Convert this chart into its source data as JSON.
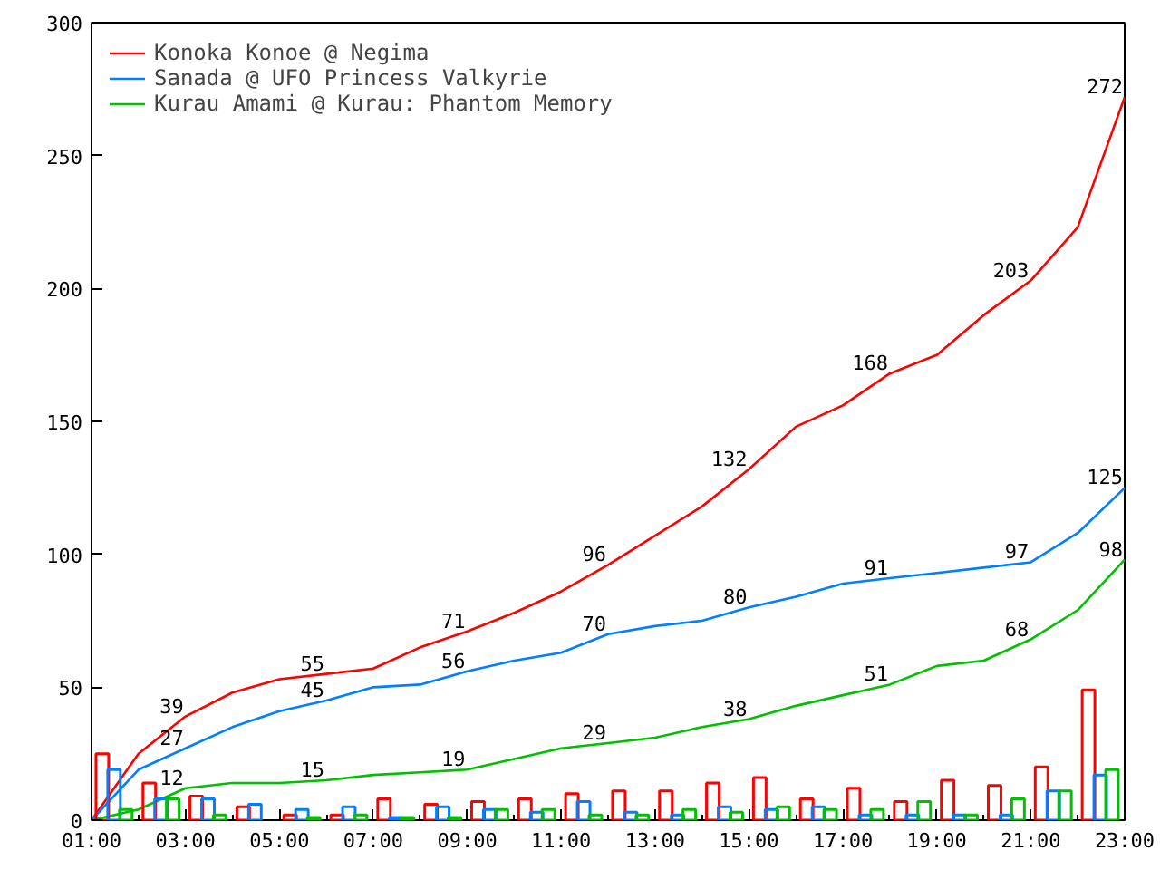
{
  "chart_data": {
    "type": "line",
    "xlim": [
      1,
      23
    ],
    "ylim": [
      0,
      300
    ],
    "xticks": [
      {
        "value": 1,
        "label": "01:00"
      },
      {
        "value": 3,
        "label": "03:00"
      },
      {
        "value": 5,
        "label": "05:00"
      },
      {
        "value": 7,
        "label": "07:00"
      },
      {
        "value": 9,
        "label": "09:00"
      },
      {
        "value": 11,
        "label": "11:00"
      },
      {
        "value": 13,
        "label": "13:00"
      },
      {
        "value": 15,
        "label": "15:00"
      },
      {
        "value": 17,
        "label": "17:00"
      },
      {
        "value": 19,
        "label": "19:00"
      },
      {
        "value": 21,
        "label": "21:00"
      },
      {
        "value": 23,
        "label": "23:00"
      }
    ],
    "yticks": [
      0,
      50,
      100,
      150,
      200,
      250,
      300
    ],
    "grid": false,
    "legend": "top left",
    "series": [
      {
        "name": "Konoka Konoe @ Negima",
        "color": "#ff0000",
        "x": [
          1,
          2,
          3,
          4,
          5,
          6,
          7,
          8,
          9,
          10,
          11,
          12,
          13,
          14,
          15,
          16,
          17,
          18,
          19,
          20,
          21,
          22,
          23
        ],
        "values": [
          0,
          25,
          39,
          48,
          53,
          55,
          57,
          65,
          71,
          78,
          86,
          96,
          107,
          118,
          132,
          148,
          156,
          168,
          175,
          190,
          203,
          223,
          272
        ],
        "value_labels": [
          null,
          null,
          "39",
          null,
          null,
          "55",
          null,
          null,
          "71",
          null,
          null,
          "96",
          null,
          null,
          "132",
          null,
          null,
          "168",
          null,
          null,
          "203",
          null,
          "272"
        ]
      },
      {
        "name": "Sanada @ UFO Princess Valkyrie",
        "color": "#0080ff",
        "x": [
          1,
          2,
          3,
          4,
          5,
          6,
          7,
          8,
          9,
          10,
          11,
          12,
          13,
          14,
          15,
          16,
          17,
          18,
          19,
          20,
          21,
          22,
          23
        ],
        "values": [
          0,
          19,
          27,
          35,
          41,
          45,
          50,
          51,
          56,
          60,
          63,
          70,
          73,
          75,
          80,
          84,
          89,
          91,
          93,
          95,
          97,
          108,
          125
        ],
        "value_labels": [
          null,
          null,
          "27",
          null,
          null,
          "45",
          null,
          null,
          "56",
          null,
          null,
          "70",
          null,
          null,
          "80",
          null,
          null,
          "91",
          null,
          null,
          "97",
          null,
          "125"
        ]
      },
      {
        "name": "Kurau Amami @ Kurau: Phantom Memory",
        "color": "#00c000",
        "x": [
          1,
          2,
          3,
          4,
          5,
          6,
          7,
          8,
          9,
          10,
          11,
          12,
          13,
          14,
          15,
          16,
          17,
          18,
          19,
          20,
          21,
          22,
          23
        ],
        "values": [
          0,
          4,
          12,
          14,
          14,
          15,
          17,
          18,
          19,
          23,
          27,
          29,
          31,
          35,
          38,
          43,
          47,
          51,
          58,
          60,
          68,
          79,
          98
        ],
        "value_labels": [
          null,
          null,
          "12",
          null,
          null,
          "15",
          null,
          null,
          "19",
          null,
          null,
          "29",
          null,
          null,
          "38",
          null,
          null,
          "51",
          null,
          null,
          "68",
          null,
          "98"
        ]
      },
      {
        "type": "bar",
        "color": "#ff0000",
        "x": [
          1.23,
          2.23,
          3.23,
          4.23,
          5.23,
          6.23,
          7.23,
          8.23,
          9.23,
          10.23,
          11.23,
          12.23,
          13.23,
          14.23,
          15.23,
          16.23,
          17.23,
          18.23,
          19.23,
          20.23,
          21.23,
          22.23
        ],
        "values": [
          25,
          14,
          9,
          5,
          2,
          2,
          8,
          6,
          7,
          8,
          10,
          11,
          11,
          14,
          16,
          8,
          12,
          7,
          15,
          13,
          20,
          49
        ]
      },
      {
        "type": "bar",
        "color": "#0080ff",
        "x": [
          1.48,
          2.48,
          3.48,
          4.48,
          5.48,
          6.48,
          7.48,
          8.48,
          9.48,
          10.48,
          11.48,
          12.48,
          13.48,
          14.48,
          15.48,
          16.48,
          17.48,
          18.48,
          19.48,
          20.48,
          21.48,
          22.48
        ],
        "values": [
          19,
          8,
          8,
          6,
          4,
          5,
          1,
          5,
          4,
          3,
          7,
          3,
          2,
          5,
          4,
          5,
          2,
          2,
          2,
          2,
          11,
          17
        ]
      },
      {
        "type": "bar",
        "color": "#00c000",
        "x": [
          1.73,
          2.73,
          3.73,
          4.73,
          5.73,
          6.73,
          7.73,
          8.73,
          9.73,
          10.73,
          11.73,
          12.73,
          13.73,
          14.73,
          15.73,
          16.73,
          17.73,
          18.73,
          19.73,
          20.73,
          21.73,
          22.73
        ],
        "values": [
          4,
          8,
          2,
          null,
          1,
          2,
          1,
          1,
          4,
          4,
          2,
          2,
          4,
          3,
          5,
          4,
          4,
          7,
          2,
          8,
          11,
          19
        ]
      }
    ]
  }
}
